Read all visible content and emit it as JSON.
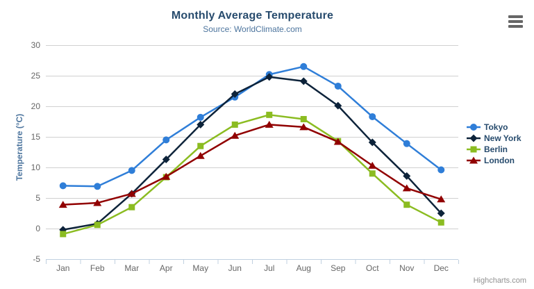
{
  "chart_data": {
    "type": "line",
    "title": "Monthly Average Temperature",
    "subtitle": "Source: WorldClimate.com",
    "categories": [
      "Jan",
      "Feb",
      "Mar",
      "Apr",
      "May",
      "Jun",
      "Jul",
      "Aug",
      "Sep",
      "Oct",
      "Nov",
      "Dec"
    ],
    "series": [
      {
        "name": "Tokyo",
        "color": "#2f7ed8",
        "marker": "circle",
        "values": [
          7.0,
          6.9,
          9.5,
          14.5,
          18.2,
          21.5,
          25.2,
          26.5,
          23.3,
          18.3,
          13.9,
          9.6
        ]
      },
      {
        "name": "New York",
        "color": "#0d233a",
        "marker": "diamond",
        "values": [
          -0.2,
          0.8,
          5.7,
          11.3,
          17.0,
          22.0,
          24.8,
          24.1,
          20.1,
          14.1,
          8.6,
          2.5
        ]
      },
      {
        "name": "Berlin",
        "color": "#8bbc21",
        "marker": "square",
        "values": [
          -0.9,
          0.6,
          3.5,
          8.4,
          13.5,
          17.0,
          18.6,
          17.9,
          14.3,
          9.0,
          3.9,
          1.0
        ]
      },
      {
        "name": "London",
        "color": "#910000",
        "marker": "triangle",
        "values": [
          3.9,
          4.2,
          5.7,
          8.5,
          11.9,
          15.2,
          17.0,
          16.6,
          14.2,
          10.3,
          6.6,
          4.8
        ]
      }
    ],
    "xlabel": "",
    "ylabel": "Temperature (°C)",
    "ylim": [
      -5,
      30
    ],
    "yticks": [
      -5,
      0,
      5,
      10,
      15,
      20,
      25,
      30
    ],
    "grid": true,
    "legend_position": "right",
    "credits": "Highcharts.com"
  },
  "ui": {
    "menu_icon": "hamburger-icon",
    "colors": {
      "title": "#274b6d",
      "subtitle": "#4d759e",
      "axis_title": "#4d759e",
      "axis_labels": "#666666",
      "grid_line": "#d0d0d0",
      "axis_line": "#c0d0e0",
      "credits": "#909090",
      "menu_bars": "#666666"
    }
  }
}
